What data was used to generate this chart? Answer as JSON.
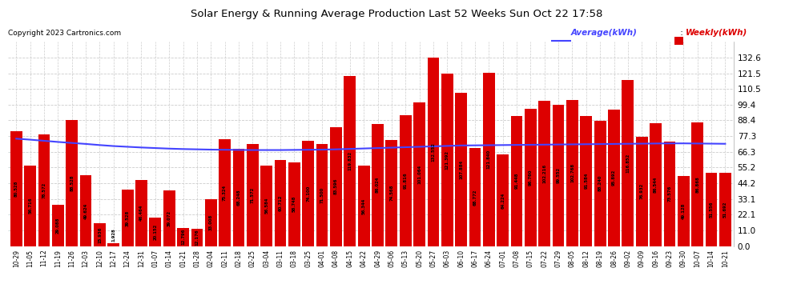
{
  "title": "Solar Energy & Running Average Production Last 52 Weeks Sun Oct 22 17:58",
  "copyright": "Copyright 2023 Cartronics.com",
  "legend_avg": "Average(kWh)",
  "legend_weekly": "Weekly(kWh)",
  "bar_color": "#dd0000",
  "line_color": "#4444ff",
  "background_color": "#ffffff",
  "grid_color": "#cccccc",
  "ylim": [
    0.0,
    143.5
  ],
  "yticks": [
    0.0,
    11.0,
    22.1,
    33.1,
    44.2,
    55.2,
    66.3,
    77.3,
    88.4,
    99.4,
    110.5,
    121.5,
    132.6
  ],
  "dates": [
    "10-29",
    "11-05",
    "11-12",
    "11-19",
    "11-26",
    "12-03",
    "12-10",
    "12-17",
    "12-24",
    "12-31",
    "01-07",
    "01-14",
    "01-21",
    "01-28",
    "02-04",
    "02-11",
    "02-18",
    "02-25",
    "03-04",
    "03-11",
    "03-18",
    "03-25",
    "04-01",
    "04-08",
    "04-15",
    "04-22",
    "04-29",
    "05-06",
    "05-13",
    "05-20",
    "05-27",
    "06-03",
    "06-10",
    "06-17",
    "06-24",
    "07-01",
    "07-08",
    "07-15",
    "07-22",
    "07-29",
    "08-05",
    "08-12",
    "08-19",
    "08-26",
    "09-02",
    "09-09",
    "09-16",
    "09-23",
    "09-30",
    "10-07",
    "10-14",
    "10-21"
  ],
  "weekly_values": [
    80.528,
    56.716,
    78.572,
    29.088,
    88.528,
    49.624,
    15.936,
    1.928,
    39.528,
    46.464,
    20.152,
    39.072,
    12.796,
    12.176,
    33.008,
    75.324,
    68.248,
    71.572,
    56.584,
    60.712,
    58.748,
    74.1,
    71.5,
    83.596,
    119.832,
    56.344,
    86.024,
    74.568,
    91.816,
    101.064,
    132.552,
    121.392,
    107.884,
    68.772,
    121.84,
    64.224,
    91.448,
    96.76,
    102.216,
    99.552,
    102.768,
    91.584,
    88.24,
    95.892,
    116.852,
    76.932,
    86.544,
    73.576,
    49.128,
    86.868,
    51.556,
    51.692
  ],
  "avg_values": [
    75.5,
    74.8,
    74.0,
    73.2,
    72.5,
    71.8,
    71.0,
    70.3,
    69.8,
    69.3,
    68.9,
    68.5,
    68.2,
    68.0,
    67.8,
    67.7,
    67.6,
    67.5,
    67.5,
    67.5,
    67.6,
    67.7,
    67.8,
    68.0,
    68.3,
    68.6,
    68.9,
    69.2,
    69.5,
    69.8,
    70.1,
    70.4,
    70.7,
    70.8,
    70.9,
    71.0,
    71.1,
    71.2,
    71.3,
    71.4,
    71.5,
    71.6,
    71.7,
    71.8,
    71.9,
    72.0,
    72.1,
    72.2,
    72.2,
    72.1,
    72.0,
    71.9
  ]
}
